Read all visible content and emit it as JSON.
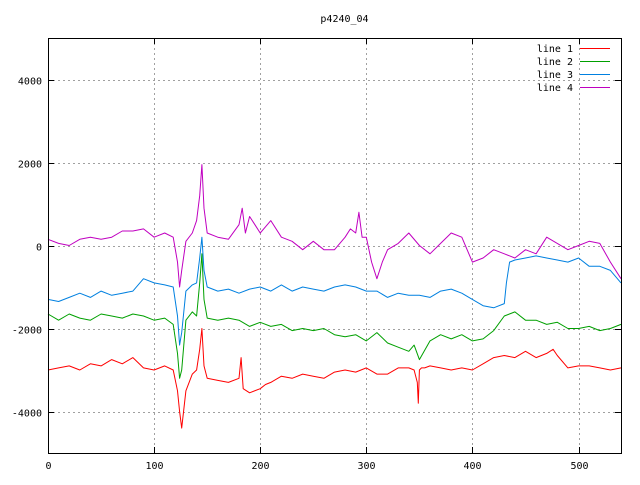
{
  "chart_data": {
    "type": "line",
    "title": "p4240_04",
    "xlabel": "",
    "ylabel": "",
    "xlim": [
      0,
      540
    ],
    "ylim": [
      -5000,
      5000
    ],
    "xticks": [
      0,
      100,
      200,
      300,
      400,
      500
    ],
    "yticks": [
      -4000,
      -2000,
      0,
      2000,
      4000
    ],
    "grid": true,
    "legend_position": "top-right",
    "series": [
      {
        "name": "line 1",
        "color": "#ff0000",
        "x": [
          0,
          10,
          20,
          30,
          40,
          50,
          60,
          70,
          80,
          90,
          100,
          110,
          118,
          122,
          124,
          126,
          130,
          136,
          140,
          143,
          145,
          147,
          150,
          160,
          170,
          180,
          182,
          184,
          190,
          200,
          205,
          210,
          220,
          230,
          240,
          250,
          260,
          270,
          280,
          290,
          300,
          310,
          320,
          330,
          340,
          345,
          348,
          349,
          350,
          352,
          355,
          360,
          370,
          380,
          390,
          400,
          410,
          420,
          430,
          440,
          450,
          460,
          470,
          476,
          480,
          490,
          500,
          510,
          520,
          530,
          540
        ],
        "y": [
          -3000,
          -2950,
          -2900,
          -3000,
          -2850,
          -2900,
          -2750,
          -2850,
          -2700,
          -2950,
          -3000,
          -2900,
          -3000,
          -3500,
          -4000,
          -4400,
          -3500,
          -3100,
          -3000,
          -2500,
          -2000,
          -2900,
          -3200,
          -3250,
          -3300,
          -3200,
          -2700,
          -3450,
          -3550,
          -3450,
          -3350,
          -3300,
          -3150,
          -3200,
          -3100,
          -3150,
          -3200,
          -3050,
          -3000,
          -3050,
          -2950,
          -3100,
          -3100,
          -2950,
          -2950,
          -3000,
          -3300,
          -3800,
          -3000,
          -2950,
          -2950,
          -2900,
          -2950,
          -3000,
          -2950,
          -3000,
          -2850,
          -2700,
          -2650,
          -2700,
          -2550,
          -2700,
          -2600,
          -2500,
          -2650,
          -2950,
          -2900,
          -2900,
          -2950,
          -3000,
          -2950
        ]
      },
      {
        "name": "line 2",
        "color": "#00a000",
        "x": [
          0,
          10,
          20,
          30,
          40,
          50,
          60,
          70,
          80,
          90,
          100,
          110,
          118,
          122,
          124,
          126,
          130,
          136,
          140,
          143,
          145,
          147,
          150,
          160,
          170,
          180,
          190,
          200,
          210,
          220,
          230,
          240,
          250,
          260,
          270,
          280,
          290,
          300,
          310,
          320,
          330,
          340,
          345,
          350,
          360,
          370,
          380,
          390,
          400,
          410,
          420,
          430,
          440,
          450,
          460,
          470,
          480,
          490,
          500,
          510,
          520,
          530,
          540
        ],
        "y": [
          -1650,
          -1800,
          -1650,
          -1750,
          -1800,
          -1650,
          -1700,
          -1750,
          -1650,
          -1700,
          -1800,
          -1750,
          -1900,
          -2600,
          -3200,
          -3000,
          -1800,
          -1600,
          -1700,
          -900,
          -200,
          -1300,
          -1750,
          -1800,
          -1750,
          -1800,
          -1950,
          -1850,
          -1950,
          -1900,
          -2050,
          -2000,
          -2050,
          -2000,
          -2150,
          -2200,
          -2150,
          -2300,
          -2100,
          -2350,
          -2450,
          -2550,
          -2400,
          -2750,
          -2300,
          -2150,
          -2250,
          -2150,
          -2300,
          -2250,
          -2050,
          -1700,
          -1600,
          -1800,
          -1800,
          -1900,
          -1850,
          -2000,
          -2000,
          -1950,
          -2050,
          -2000,
          -1900
        ]
      },
      {
        "name": "line 3",
        "color": "#0080e0",
        "x": [
          0,
          10,
          20,
          30,
          40,
          50,
          60,
          70,
          80,
          90,
          100,
          110,
          118,
          122,
          124,
          126,
          130,
          136,
          140,
          143,
          145,
          147,
          150,
          160,
          170,
          180,
          190,
          200,
          210,
          220,
          230,
          240,
          250,
          260,
          270,
          280,
          290,
          300,
          310,
          320,
          330,
          340,
          350,
          360,
          370,
          380,
          390,
          400,
          410,
          420,
          430,
          432,
          435,
          440,
          450,
          460,
          470,
          480,
          490,
          500,
          510,
          520,
          530,
          540
        ],
        "y": [
          -1300,
          -1350,
          -1250,
          -1150,
          -1250,
          -1100,
          -1200,
          -1150,
          -1100,
          -800,
          -900,
          -950,
          -1000,
          -1700,
          -2400,
          -2100,
          -1100,
          -950,
          -900,
          -300,
          200,
          -600,
          -1000,
          -1100,
          -1050,
          -1150,
          -1050,
          -1000,
          -1100,
          -950,
          -1100,
          -1000,
          -1050,
          -1100,
          -1000,
          -950,
          -1000,
          -1100,
          -1100,
          -1250,
          -1150,
          -1200,
          -1200,
          -1250,
          -1100,
          -1050,
          -1150,
          -1300,
          -1450,
          -1500,
          -1400,
          -900,
          -400,
          -350,
          -300,
          -250,
          -300,
          -350,
          -400,
          -300,
          -500,
          -500,
          -600,
          -900
        ]
      },
      {
        "name": "line 4",
        "color": "#c000c0",
        "x": [
          0,
          10,
          20,
          30,
          40,
          50,
          60,
          70,
          80,
          90,
          100,
          110,
          118,
          122,
          124,
          126,
          130,
          136,
          140,
          143,
          145,
          147,
          150,
          160,
          170,
          180,
          183,
          186,
          190,
          195,
          200,
          205,
          210,
          220,
          230,
          240,
          250,
          260,
          270,
          280,
          285,
          290,
          293,
          296,
          300,
          305,
          310,
          315,
          320,
          330,
          340,
          350,
          360,
          370,
          380,
          390,
          400,
          410,
          420,
          430,
          440,
          450,
          460,
          470,
          480,
          490,
          500,
          510,
          520,
          530,
          540
        ],
        "y": [
          150,
          50,
          0,
          150,
          200,
          150,
          200,
          350,
          350,
          400,
          200,
          300,
          200,
          -400,
          -1000,
          -600,
          100,
          300,
          600,
          1200,
          1950,
          900,
          300,
          200,
          150,
          500,
          900,
          300,
          700,
          500,
          300,
          450,
          600,
          200,
          100,
          -100,
          100,
          -100,
          -100,
          200,
          400,
          300,
          800,
          200,
          200,
          -400,
          -800,
          -400,
          -100,
          50,
          300,
          0,
          -200,
          50,
          300,
          200,
          -400,
          -300,
          -100,
          -200,
          -300,
          -100,
          -200,
          200,
          50,
          -100,
          0,
          100,
          50,
          -400,
          -800
        ]
      }
    ]
  }
}
